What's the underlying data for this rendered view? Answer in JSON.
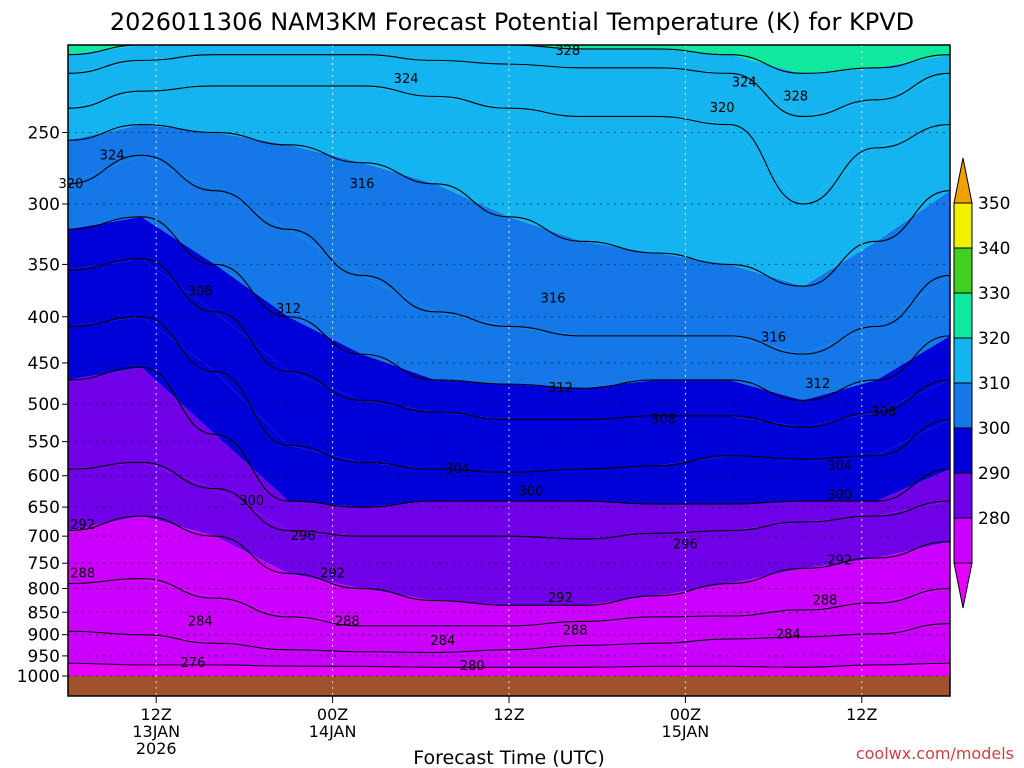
{
  "chart_data": {
    "type": "heatmap",
    "title": "2026011306 NAM3KM Forecast Potential Temperature (K) for KPVD",
    "xlabel": "Forecast Time (UTC)",
    "ylabel": "",
    "units": "K",
    "y_ticks": [
      250,
      300,
      350,
      400,
      450,
      500,
      550,
      600,
      650,
      700,
      750,
      800,
      850,
      900,
      950,
      1000
    ],
    "ylim": [
      1000,
      200
    ],
    "x_range_hours": [
      -6,
      54
    ],
    "x_ticks": [
      {
        "hour": 0,
        "label": "12Z",
        "sub": "13JAN",
        "sub2": "2026"
      },
      {
        "hour": 12,
        "label": "00Z",
        "sub": "14JAN",
        "sub2": ""
      },
      {
        "hour": 24,
        "label": "12Z",
        "sub": "",
        "sub2": ""
      },
      {
        "hour": 36,
        "label": "00Z",
        "sub": "15JAN",
        "sub2": ""
      },
      {
        "hour": 48,
        "label": "12Z",
        "sub": "",
        "sub2": ""
      }
    ],
    "colorbar": {
      "levels": [
        280,
        290,
        300,
        310,
        320,
        330,
        340,
        350
      ],
      "colors": [
        "#cc00ff",
        "#7000e8",
        "#0000d8",
        "#1478e8",
        "#14b4f0",
        "#10e8a0",
        "#40d020",
        "#f0f000"
      ],
      "over_color": "#f0a000",
      "under_color": "#e800ff"
    },
    "series": [
      {
        "name": "theta_280",
        "level": 280,
        "p": [
          968,
          972,
          972,
          975,
          976,
          978,
          978,
          978,
          976,
          976,
          978,
          972,
          968
        ]
      },
      {
        "name": "theta_284",
        "level": 284,
        "p": [
          892,
          900,
          920,
          935,
          940,
          942,
          935,
          925,
          920,
          910,
          905,
          898,
          875
        ]
      },
      {
        "name": "theta_288",
        "level": 288,
        "p": [
          790,
          780,
          820,
          860,
          880,
          880,
          880,
          870,
          860,
          858,
          845,
          830,
          800
        ]
      },
      {
        "name": "theta_292",
        "level": 292,
        "p": [
          690,
          665,
          700,
          770,
          800,
          825,
          835,
          835,
          815,
          790,
          760,
          740,
          710
        ]
      },
      {
        "name": "theta_296",
        "level": 296,
        "p": [
          590,
          580,
          620,
          690,
          700,
          700,
          700,
          705,
          695,
          690,
          675,
          665,
          640
        ]
      },
      {
        "name": "theta_300",
        "level": 300,
        "p": [
          470,
          455,
          540,
          640,
          650,
          640,
          640,
          640,
          645,
          645,
          640,
          640,
          590
        ]
      },
      {
        "name": "theta_304",
        "level": 304,
        "p": [
          410,
          400,
          460,
          555,
          580,
          590,
          595,
          590,
          585,
          570,
          575,
          570,
          520
        ]
      },
      {
        "name": "theta_308",
        "level": 308,
        "p": [
          355,
          345,
          395,
          460,
          495,
          510,
          520,
          520,
          515,
          515,
          530,
          510,
          470
        ]
      },
      {
        "name": "theta_312",
        "level": 312,
        "p": [
          320,
          310,
          350,
          400,
          440,
          470,
          475,
          480,
          470,
          470,
          495,
          470,
          420
        ]
      },
      {
        "name": "theta_316",
        "level": 316,
        "p": [
          285,
          265,
          290,
          320,
          360,
          395,
          410,
          420,
          420,
          420,
          440,
          410,
          360
        ]
      },
      {
        "name": "theta_320",
        "level": 320,
        "p": [
          255,
          245,
          250,
          258,
          270,
          285,
          310,
          330,
          340,
          350,
          370,
          330,
          290
        ]
      },
      {
        "name": "theta_324",
        "level": 324,
        "p": [
          235,
          225,
          222,
          222,
          222,
          228,
          235,
          240,
          240,
          245,
          300,
          260,
          245
        ]
      },
      {
        "name": "theta_328",
        "level": 328,
        "p": [
          215,
          208,
          205,
          205,
          205,
          208,
          210,
          212,
          212,
          215,
          240,
          230,
          215
        ]
      },
      {
        "name": "theta_332",
        "level": 332,
        "p": [
          205,
          200,
          198,
          198,
          198,
          200,
          200,
          202,
          202,
          205,
          215,
          212,
          205
        ]
      }
    ],
    "contour_labels": [
      {
        "text": "320",
        "hour": -5.8,
        "p": 285
      },
      {
        "text": "324",
        "hour": -3.0,
        "p": 265
      },
      {
        "text": "316",
        "hour": 14.0,
        "p": 285
      },
      {
        "text": "324",
        "hour": 17.0,
        "p": 218
      },
      {
        "text": "328",
        "hour": 28.0,
        "p": 203
      },
      {
        "text": "324",
        "hour": 40.0,
        "p": 220
      },
      {
        "text": "320",
        "hour": 38.5,
        "p": 235
      },
      {
        "text": "328",
        "hour": 43.5,
        "p": 228
      },
      {
        "text": "308",
        "hour": 3.0,
        "p": 375
      },
      {
        "text": "312",
        "hour": 9.0,
        "p": 392
      },
      {
        "text": "316",
        "hour": 27.0,
        "p": 382
      },
      {
        "text": "316",
        "hour": 42.0,
        "p": 422
      },
      {
        "text": "312",
        "hour": 27.5,
        "p": 480
      },
      {
        "text": "312",
        "hour": 45.0,
        "p": 475
      },
      {
        "text": "308",
        "hour": 34.5,
        "p": 520
      },
      {
        "text": "308",
        "hour": 49.5,
        "p": 510
      },
      {
        "text": "304",
        "hour": 20.5,
        "p": 590
      },
      {
        "text": "304",
        "hour": 46.5,
        "p": 585
      },
      {
        "text": "300",
        "hour": 6.5,
        "p": 640
      },
      {
        "text": "300",
        "hour": 25.5,
        "p": 625
      },
      {
        "text": "300",
        "hour": 46.5,
        "p": 630
      },
      {
        "text": "292",
        "hour": -5.0,
        "p": 680
      },
      {
        "text": "296",
        "hour": 10.0,
        "p": 700
      },
      {
        "text": "296",
        "hour": 36.0,
        "p": 715
      },
      {
        "text": "292",
        "hour": 46.5,
        "p": 745
      },
      {
        "text": "288",
        "hour": -5.0,
        "p": 770
      },
      {
        "text": "292",
        "hour": 12.0,
        "p": 770
      },
      {
        "text": "292",
        "hour": 27.5,
        "p": 820
      },
      {
        "text": "288",
        "hour": 45.5,
        "p": 825
      },
      {
        "text": "284",
        "hour": 3.0,
        "p": 870
      },
      {
        "text": "288",
        "hour": 13.0,
        "p": 870
      },
      {
        "text": "288",
        "hour": 28.5,
        "p": 890
      },
      {
        "text": "284",
        "hour": 43.0,
        "p": 900
      },
      {
        "text": "284",
        "hour": 19.5,
        "p": 915
      },
      {
        "text": "276",
        "hour": 2.5,
        "p": 968
      },
      {
        "text": "280",
        "hour": 21.5,
        "p": 975
      }
    ],
    "credit": "coolwx.com/models"
  }
}
